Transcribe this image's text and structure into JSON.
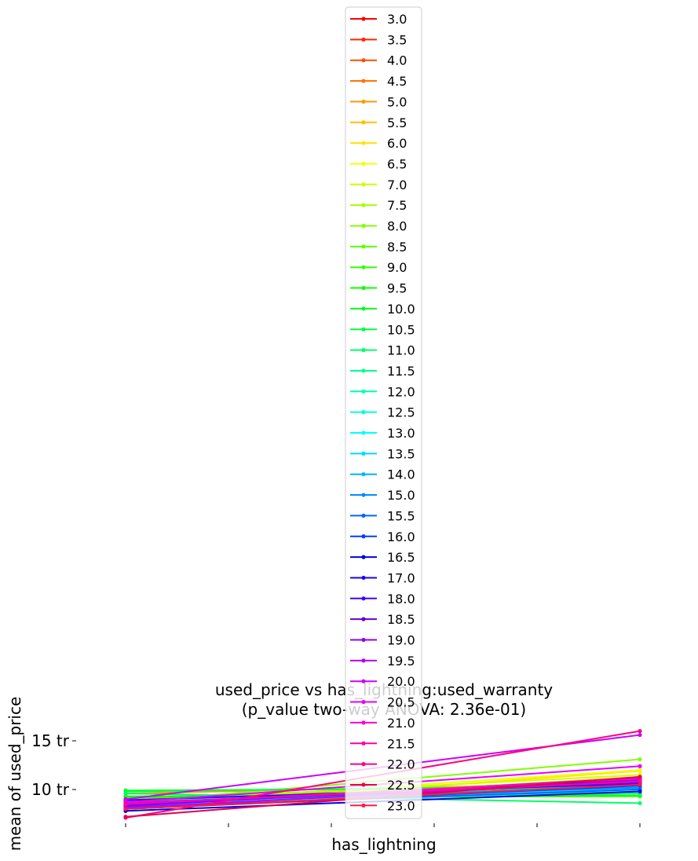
{
  "chart_data": {
    "type": "line",
    "title": "used_price vs has_lightning:used_warranty",
    "subtitle": "(p_value two-way ANOVA: 2.36e-01)",
    "xlabel": "has_lightning",
    "ylabel": "mean of used_price",
    "x": [
      0,
      1
    ],
    "y_unit": "tr",
    "ylim": [
      6.8,
      17.5
    ],
    "yticks": [
      10,
      15
    ],
    "ytick_labels": [
      "10 tr",
      "15 tr"
    ],
    "grid": false,
    "legend_placement": "top-center",
    "series": [
      {
        "name": "3.0",
        "color": "#ff0000",
        "values": [
          8.0,
          10.3
        ]
      },
      {
        "name": "3.5",
        "color": "#ff2600",
        "values": [
          8.3,
          10.6
        ]
      },
      {
        "name": "4.0",
        "color": "#ff4d00",
        "values": [
          8.6,
          10.8
        ]
      },
      {
        "name": "4.5",
        "color": "#ff7300",
        "values": [
          8.9,
          11.0
        ]
      },
      {
        "name": "5.0",
        "color": "#ff9900",
        "values": [
          9.6,
          10.7
        ]
      },
      {
        "name": "5.5",
        "color": "#ffbf00",
        "values": [
          8.2,
          11.3
        ]
      },
      {
        "name": "6.0",
        "color": "#ffe500",
        "values": [
          8.1,
          11.9
        ]
      },
      {
        "name": "6.5",
        "color": "#f2ff00",
        "values": [
          8.5,
          12.0
        ]
      },
      {
        "name": "7.0",
        "color": "#ccff00",
        "values": [
          8.8,
          11.5
        ]
      },
      {
        "name": "7.5",
        "color": "#a6ff00",
        "values": [
          9.1,
          10.9
        ]
      },
      {
        "name": "8.0",
        "color": "#80ff00",
        "values": [
          8.7,
          13.1
        ]
      },
      {
        "name": "8.5",
        "color": "#59ff00",
        "values": [
          9.0,
          10.5
        ]
      },
      {
        "name": "9.0",
        "color": "#33ff00",
        "values": [
          9.2,
          9.3
        ]
      },
      {
        "name": "9.5",
        "color": "#0dff00",
        "values": [
          9.3,
          9.4
        ]
      },
      {
        "name": "10.0",
        "color": "#00ff1a",
        "values": [
          9.9,
          10.2
        ]
      },
      {
        "name": "10.5",
        "color": "#00ff40",
        "values": [
          9.8,
          10.4
        ]
      },
      {
        "name": "11.0",
        "color": "#00ff66",
        "values": [
          9.6,
          8.6
        ]
      },
      {
        "name": "11.5",
        "color": "#00ff8c",
        "values": [
          8.9,
          9.6
        ]
      },
      {
        "name": "12.0",
        "color": "#00ffb3",
        "values": [
          8.4,
          9.8
        ]
      },
      {
        "name": "12.5",
        "color": "#00ffd9",
        "values": [
          8.6,
          10.0
        ]
      },
      {
        "name": "13.0",
        "color": "#00ffff",
        "values": [
          8.8,
          10.3
        ]
      },
      {
        "name": "13.5",
        "color": "#00d9ff",
        "values": [
          8.5,
          10.1
        ]
      },
      {
        "name": "14.0",
        "color": "#00b3ff",
        "values": [
          8.3,
          10.5
        ]
      },
      {
        "name": "15.0",
        "color": "#008cff",
        "values": [
          8.7,
          10.2
        ]
      },
      {
        "name": "15.5",
        "color": "#0066ff",
        "values": [
          8.2,
          10.0
        ]
      },
      {
        "name": "16.0",
        "color": "#0040ff",
        "values": [
          8.0,
          10.4
        ]
      },
      {
        "name": "16.5",
        "color": "#0000e6",
        "values": [
          7.8,
          9.8
        ]
      },
      {
        "name": "17.0",
        "color": "#1a00ff",
        "values": [
          8.6,
          10.7
        ]
      },
      {
        "name": "18.0",
        "color": "#4000ff",
        "values": [
          8.9,
          10.6
        ]
      },
      {
        "name": "18.5",
        "color": "#6600cc",
        "values": [
          8.4,
          11.0
        ]
      },
      {
        "name": "19.0",
        "color": "#8c00ff",
        "values": [
          8.3,
          11.2
        ]
      },
      {
        "name": "19.5",
        "color": "#b300ff",
        "values": [
          8.1,
          10.9
        ]
      },
      {
        "name": "20.0",
        "color": "#cc00ff",
        "values": [
          9.0,
          15.6
        ]
      },
      {
        "name": "20.5",
        "color": "#e600ff",
        "values": [
          8.7,
          12.4
        ]
      },
      {
        "name": "21.0",
        "color": "#ff00cc",
        "values": [
          8.5,
          11.1
        ]
      },
      {
        "name": "21.5",
        "color": "#ff00a6",
        "values": [
          8.6,
          10.8
        ]
      },
      {
        "name": "22.0",
        "color": "#ff0080",
        "values": [
          7.1,
          16.0
        ]
      },
      {
        "name": "22.5",
        "color": "#e6004d",
        "values": [
          7.2,
          11.3
        ]
      },
      {
        "name": "23.0",
        "color": "#ff1a40",
        "values": [
          8.0,
          10.5
        ]
      }
    ]
  }
}
